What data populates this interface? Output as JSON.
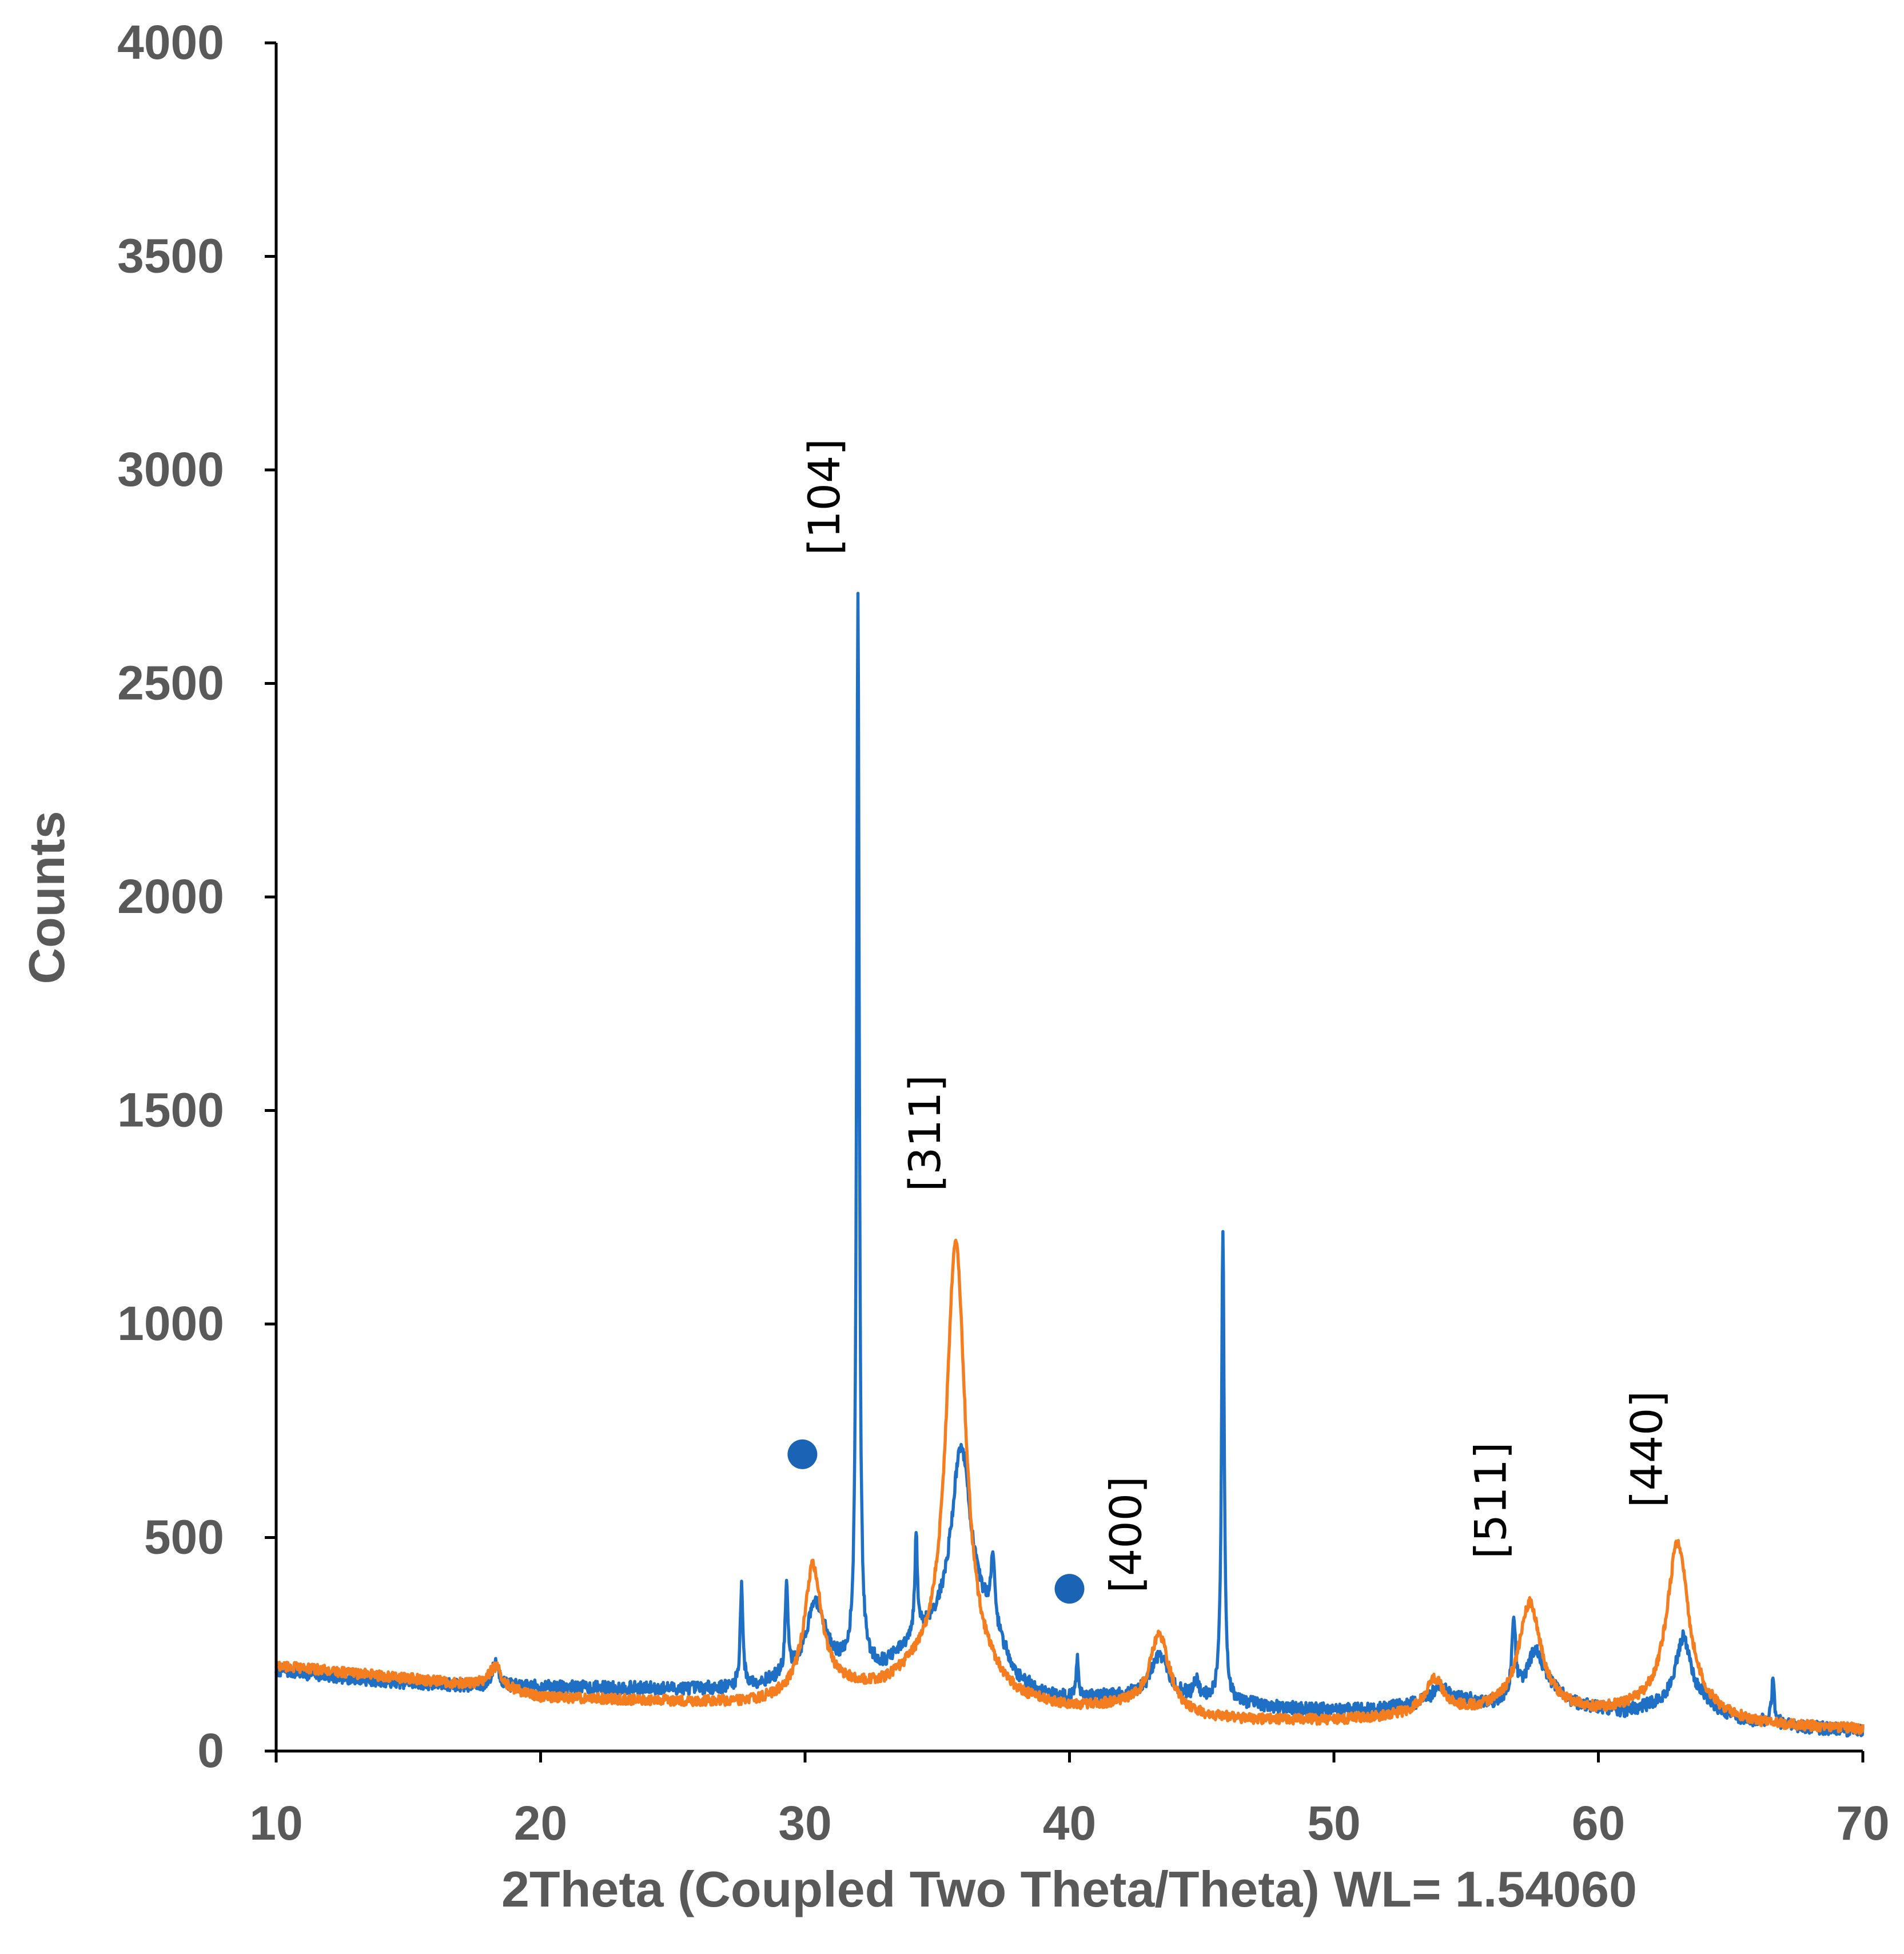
{
  "chart_data": {
    "type": "line",
    "title": "",
    "xlabel": "2Theta (Coupled Two Theta/Theta) WL= 1.54060",
    "ylabel": "Counts",
    "xlim": [
      10,
      70
    ],
    "ylim": [
      0,
      4000
    ],
    "x_ticks": [
      "10",
      "20",
      "30",
      "40",
      "50",
      "60",
      "70"
    ],
    "y_ticks": [
      "0",
      "500",
      "1000",
      "1500",
      "2000",
      "2500",
      "3000",
      "3500",
      "4000"
    ],
    "grid": false,
    "legend": "none",
    "series": [
      {
        "color": "#1f6fc5",
        "baseline": [
          [
            10,
            190
          ],
          [
            12,
            175
          ],
          [
            15,
            160
          ],
          [
            18,
            150
          ],
          [
            20,
            150
          ],
          [
            22,
            148
          ],
          [
            25,
            145
          ],
          [
            27,
            145
          ],
          [
            28,
            150
          ],
          [
            29,
            160
          ],
          [
            31,
            180
          ],
          [
            33,
            190
          ],
          [
            34.5,
            260
          ],
          [
            37,
            280
          ],
          [
            38,
            160
          ],
          [
            39,
            130
          ],
          [
            40,
            120
          ],
          [
            42,
            125
          ],
          [
            45,
            120
          ],
          [
            46.5,
            110
          ],
          [
            48,
            100
          ],
          [
            50,
            95
          ],
          [
            52,
            100
          ],
          [
            54,
            115
          ],
          [
            55,
            120
          ],
          [
            56,
            110
          ],
          [
            58,
            150
          ],
          [
            59,
            110
          ],
          [
            61,
            90
          ],
          [
            62,
            100
          ],
          [
            64,
            110
          ],
          [
            65,
            75
          ],
          [
            68,
            55
          ],
          [
            70,
            45
          ]
        ],
        "peaks": [
          [
            18.3,
            60,
            0.15
          ],
          [
            27.6,
            240,
            0.06
          ],
          [
            29.3,
            210,
            0.06
          ],
          [
            30.4,
            170,
            0.45
          ],
          [
            32.0,
            2520,
            0.06
          ],
          [
            34.2,
            230,
            0.06
          ],
          [
            35.9,
            440,
            0.45
          ],
          [
            37.1,
            150,
            0.08
          ],
          [
            40.3,
            90,
            0.06
          ],
          [
            43.4,
            100,
            0.4
          ],
          [
            44.8,
            40,
            0.1
          ],
          [
            45.8,
            1100,
            0.06
          ],
          [
            54.0,
            40,
            0.3
          ],
          [
            56.8,
            180,
            0.08
          ],
          [
            57.6,
            90,
            0.35
          ],
          [
            63.2,
            160,
            0.35
          ],
          [
            66.6,
            100,
            0.06
          ]
        ],
        "noise": 15
      },
      {
        "color": "#f47d20",
        "baseline": [
          [
            10,
            200
          ],
          [
            14,
            175
          ],
          [
            18,
            150
          ],
          [
            20,
            125
          ],
          [
            25,
            115
          ],
          [
            28,
            110
          ],
          [
            29.5,
            120
          ],
          [
            31,
            140
          ],
          [
            33,
            140
          ],
          [
            34,
            160
          ],
          [
            37,
            140
          ],
          [
            38,
            110
          ],
          [
            40,
            95
          ],
          [
            42,
            100
          ],
          [
            45,
            75
          ],
          [
            47,
            70
          ],
          [
            50,
            70
          ],
          [
            53,
            80
          ],
          [
            56,
            90
          ],
          [
            58,
            95
          ],
          [
            60,
            85
          ],
          [
            62,
            90
          ],
          [
            64,
            80
          ],
          [
            66,
            60
          ],
          [
            68,
            55
          ],
          [
            70,
            50
          ]
        ],
        "peaks": [
          [
            18.3,
            50,
            0.3
          ],
          [
            30.3,
            300,
            0.4
          ],
          [
            35.7,
            1040,
            0.45
          ],
          [
            43.4,
            180,
            0.45
          ],
          [
            53.8,
            80,
            0.45
          ],
          [
            57.4,
            250,
            0.5
          ],
          [
            63.0,
            400,
            0.5
          ]
        ],
        "noise": 12
      }
    ],
    "annotations": [
      {
        "text": "[104]",
        "x": 31.3,
        "y": 2800,
        "rotate": -90
      },
      {
        "text": "[311]",
        "x": 35.1,
        "y": 1310,
        "rotate": -90
      },
      {
        "text": "[400]",
        "x": 42.7,
        "y": 370,
        "rotate": -90
      },
      {
        "text": "[511]",
        "x": 56.5,
        "y": 450,
        "rotate": -90
      },
      {
        "text": "[440]",
        "x": 62.4,
        "y": 570,
        "rotate": -90
      }
    ],
    "markers": [
      {
        "x": 29.9,
        "y": 695,
        "color": "#1a63b5"
      },
      {
        "x": 40.0,
        "y": 380,
        "color": "#1a63b5"
      }
    ]
  }
}
